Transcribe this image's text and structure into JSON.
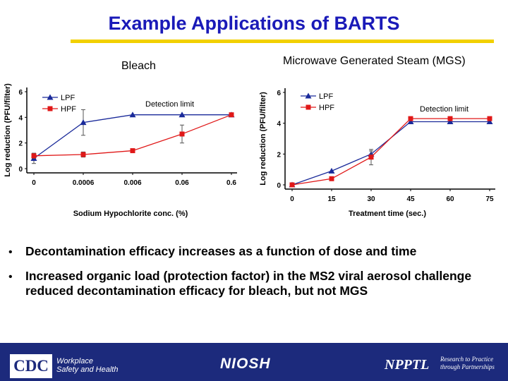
{
  "title": "Example Applications of BARTS",
  "captions": {
    "left": "Bleach",
    "right": "Microwave Generated Steam (MGS)"
  },
  "bullets": [
    "Decontamination efficacy increases as a function of dose and time",
    "Increased organic load (protection factor) in the MS2 viral aerosol challenge reduced decontamination efficacy for bleach, but not MGS"
  ],
  "bullet_symbol": "•",
  "footer": {
    "cdc": "CDC",
    "cdc_tagline_1": "Workplace",
    "cdc_tagline_2": "Safety and Health",
    "niosh": "NIOSH",
    "npptl": "NPPTL",
    "npptl_tagline_1": "Research to Practice",
    "npptl_tagline_2": "through Partnerships"
  },
  "colors": {
    "title": "#1a1ab8",
    "rule": "#f2d000",
    "LPF": "#1a2a9a",
    "HPF": "#e01818",
    "footer": "#1c2a7c"
  },
  "chart_data": [
    {
      "type": "line",
      "xlabel": "Sodium Hypochlorite conc. (%)",
      "ylabel": "Log reduction (PFU/filter)",
      "categories": [
        "0",
        "0.0006",
        "0.006",
        "0.06",
        "0.6"
      ],
      "ylim": [
        0,
        6
      ],
      "yticks": [
        0,
        2,
        4,
        6
      ],
      "annotation": "Detection limit",
      "legend_position": "top-left",
      "series": [
        {
          "name": "LPF",
          "marker": "triangle",
          "color": "#1a2a9a",
          "values": [
            0.8,
            3.6,
            4.2,
            4.2,
            4.2
          ],
          "err": [
            0.4,
            1.0,
            0,
            0,
            0
          ]
        },
        {
          "name": "HPF",
          "marker": "square",
          "color": "#e01818",
          "values": [
            1.0,
            1.1,
            1.4,
            2.7,
            4.2
          ],
          "err": [
            0.2,
            0.2,
            0,
            0.7,
            0
          ]
        }
      ]
    },
    {
      "type": "line",
      "xlabel": "Treatment time (sec.)",
      "ylabel": "Log reduction (PFU/filter)",
      "categories": [
        "0",
        "15",
        "30",
        "45",
        "60",
        "75"
      ],
      "ylim": [
        0,
        6
      ],
      "yticks": [
        0,
        2,
        4,
        6
      ],
      "annotation": "Detection limit",
      "legend_position": "top-left",
      "series": [
        {
          "name": "LPF",
          "marker": "triangle",
          "color": "#1a2a9a",
          "values": [
            0,
            0.9,
            2.0,
            4.1,
            4.1,
            4.1
          ],
          "err": [
            0,
            0,
            0.2,
            0,
            0,
            0
          ]
        },
        {
          "name": "HPF",
          "marker": "square",
          "color": "#e01818",
          "values": [
            0,
            0.4,
            1.8,
            4.3,
            4.3,
            4.3
          ],
          "err": [
            0,
            0,
            0.5,
            0,
            0,
            0
          ]
        }
      ]
    }
  ]
}
